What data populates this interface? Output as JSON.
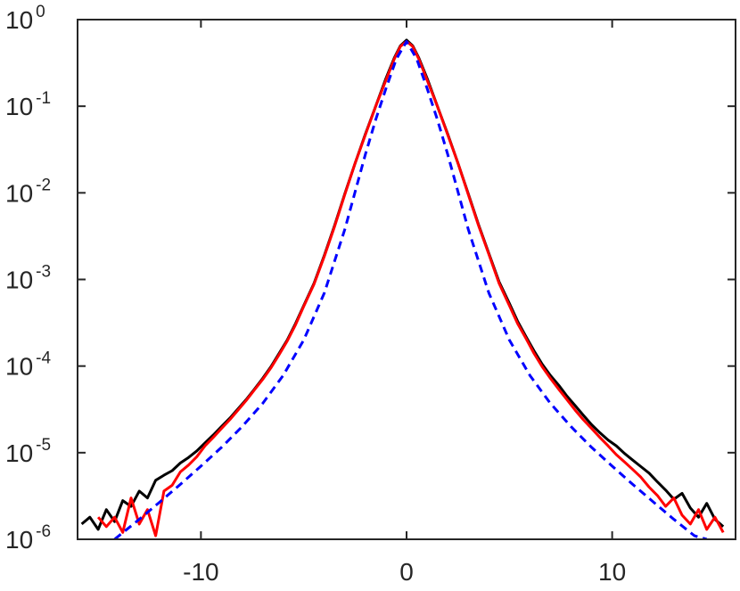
{
  "chart_data": {
    "type": "line",
    "title": "",
    "xlabel": "",
    "ylabel": "",
    "xlim": [
      -16,
      16
    ],
    "ylim": [
      1e-06,
      1
    ],
    "yscale": "log",
    "grid": false,
    "legend": "none",
    "x_ticks": [
      {
        "value": -10,
        "label": "-10"
      },
      {
        "value": 0,
        "label": "0"
      },
      {
        "value": 10,
        "label": "10"
      }
    ],
    "y_ticks": [
      {
        "value": 1.0,
        "base": "10",
        "exp": "0"
      },
      {
        "value": 0.1,
        "base": "10",
        "exp": "-1"
      },
      {
        "value": 0.01,
        "base": "10",
        "exp": "-2"
      },
      {
        "value": 0.001,
        "base": "10",
        "exp": "-3"
      },
      {
        "value": 0.0001,
        "base": "10",
        "exp": "-4"
      },
      {
        "value": 1e-05,
        "base": "10",
        "exp": "-5"
      },
      {
        "value": 1e-06,
        "base": "10",
        "exp": "-6"
      }
    ],
    "series": [
      {
        "color": "#000000",
        "style": "solid",
        "x": [
          -15.8,
          -15.4,
          -15.0,
          -14.6,
          -14.2,
          -13.8,
          -13.4,
          -13.0,
          -12.6,
          -12.2,
          -11.8,
          -11.4,
          -11.0,
          -10.6,
          -10.2,
          -9.8,
          -9.4,
          -9.0,
          -8.6,
          -8.2,
          -7.8,
          -7.4,
          -7.0,
          -6.6,
          -6.2,
          -5.8,
          -5.4,
          -5.0,
          -4.5,
          -4.0,
          -3.5,
          -3.0,
          -2.5,
          -2.0,
          -1.5,
          -1.0,
          -0.6,
          -0.3,
          0.0,
          0.3,
          0.6,
          1.0,
          1.5,
          2.0,
          2.5,
          3.0,
          3.5,
          4.0,
          4.5,
          5.0,
          5.4,
          5.8,
          6.2,
          6.6,
          7.0,
          7.4,
          7.8,
          8.2,
          8.6,
          9.0,
          9.4,
          9.8,
          10.2,
          10.6,
          11.0,
          11.4,
          11.8,
          12.2,
          12.6,
          13.0,
          13.4,
          13.8,
          14.2,
          14.6,
          15.0,
          15.4
        ],
        "y": [
          1.5e-06,
          1.8e-06,
          1.3e-06,
          2.2e-06,
          1.6e-06,
          2.8e-06,
          2.4e-06,
          3.6e-06,
          3e-06,
          4.8e-06,
          5.5e-06,
          6.2e-06,
          7.6e-06,
          8.8e-06,
          1.05e-05,
          1.3e-05,
          1.6e-05,
          2e-05,
          2.5e-05,
          3.2e-05,
          4.1e-05,
          5.4e-05,
          7.2e-05,
          9.8e-05,
          0.00014,
          0.0002,
          0.00031,
          0.0005,
          0.0009,
          0.0019,
          0.0042,
          0.0098,
          0.022,
          0.048,
          0.1,
          0.21,
          0.36,
          0.5,
          0.58,
          0.5,
          0.36,
          0.21,
          0.1,
          0.048,
          0.022,
          0.0098,
          0.0043,
          0.002,
          0.00094,
          0.00053,
          0.00033,
          0.00022,
          0.00015,
          0.000105,
          7.8e-05,
          6e-05,
          4.5e-05,
          3.5e-05,
          2.7e-05,
          2.1e-05,
          1.7e-05,
          1.4e-05,
          1.2e-05,
          9.8e-06,
          8.2e-06,
          6.9e-06,
          5.8e-06,
          4.6e-06,
          3.7e-06,
          2.9e-06,
          3.4e-06,
          2.3e-06,
          1.8e-06,
          2.6e-06,
          1.7e-06,
          1.4e-06
        ]
      },
      {
        "color": "#ff0000",
        "style": "solid",
        "x": [
          -15.0,
          -14.6,
          -14.2,
          -13.8,
          -13.4,
          -13.0,
          -12.6,
          -12.2,
          -11.8,
          -11.4,
          -11.0,
          -10.6,
          -10.2,
          -9.8,
          -9.4,
          -9.0,
          -8.6,
          -8.2,
          -7.8,
          -7.4,
          -7.0,
          -6.6,
          -6.2,
          -5.8,
          -5.4,
          -5.0,
          -4.5,
          -4.0,
          -3.5,
          -3.0,
          -2.5,
          -2.0,
          -1.5,
          -1.0,
          -0.6,
          -0.3,
          0.0,
          0.3,
          0.6,
          1.0,
          1.5,
          2.0,
          2.5,
          3.0,
          3.5,
          4.0,
          4.5,
          5.0,
          5.4,
          5.8,
          6.2,
          6.6,
          7.0,
          7.4,
          7.8,
          8.2,
          8.6,
          9.0,
          9.4,
          9.8,
          10.2,
          10.6,
          11.0,
          11.4,
          11.8,
          12.2,
          12.6,
          13.0,
          13.4,
          13.8,
          14.2,
          14.6,
          15.0,
          15.4
        ],
        "y": [
          1.8e-06,
          1.4e-06,
          1.8e-06,
          1.2e-06,
          3e-06,
          1.5e-06,
          2.2e-06,
          1.1e-06,
          3.6e-06,
          4.2e-06,
          6e-06,
          7.2e-06,
          9e-06,
          1.2e-05,
          1.5e-05,
          1.9e-05,
          2.4e-05,
          3.1e-05,
          4e-05,
          5.3e-05,
          7e-05,
          9.5e-05,
          0.000135,
          0.000195,
          0.0003,
          0.00049,
          0.00088,
          0.00185,
          0.0041,
          0.0096,
          0.022,
          0.047,
          0.1,
          0.2,
          0.35,
          0.49,
          0.56,
          0.49,
          0.35,
          0.2,
          0.1,
          0.047,
          0.022,
          0.0096,
          0.0042,
          0.00195,
          0.0009,
          0.0005,
          0.00031,
          0.00021,
          0.00014,
          9.8e-05,
          7.2e-05,
          5.4e-05,
          4.1e-05,
          3.1e-05,
          2.4e-05,
          1.9e-05,
          1.5e-05,
          1.2e-05,
          9.5e-06,
          7.8e-06,
          6.4e-06,
          5.2e-06,
          4e-06,
          3.2e-06,
          2.4e-06,
          3e-06,
          1.9e-06,
          1.5e-06,
          2.2e-06,
          1.3e-06,
          1.8e-06,
          1.2e-06
        ]
      },
      {
        "color": "#0000ff",
        "style": "dashed",
        "x": [
          -14.2,
          -13.0,
          -12.0,
          -11.0,
          -10.0,
          -9.0,
          -8.0,
          -7.0,
          -6.0,
          -5.0,
          -4.0,
          -3.0,
          -2.0,
          -1.5,
          -1.0,
          -0.5,
          0.0,
          0.5,
          1.0,
          1.5,
          2.0,
          3.0,
          4.0,
          5.0,
          6.0,
          7.0,
          8.0,
          9.0,
          10.0,
          11.0,
          12.0,
          13.0,
          14.0,
          14.6
        ],
        "y": [
          1e-06,
          1.7e-06,
          2.7e-06,
          4.3e-06,
          7e-06,
          1.15e-05,
          2e-05,
          3.7e-05,
          7.8e-05,
          0.0002,
          0.0007,
          0.0038,
          0.028,
          0.07,
          0.16,
          0.35,
          0.56,
          0.35,
          0.16,
          0.07,
          0.028,
          0.0038,
          0.0007,
          0.0002,
          7.8e-05,
          3.7e-05,
          2e-05,
          1.15e-05,
          7e-06,
          4.3e-06,
          2.7e-06,
          1.7e-06,
          1.1e-06,
          1e-06
        ]
      }
    ]
  }
}
